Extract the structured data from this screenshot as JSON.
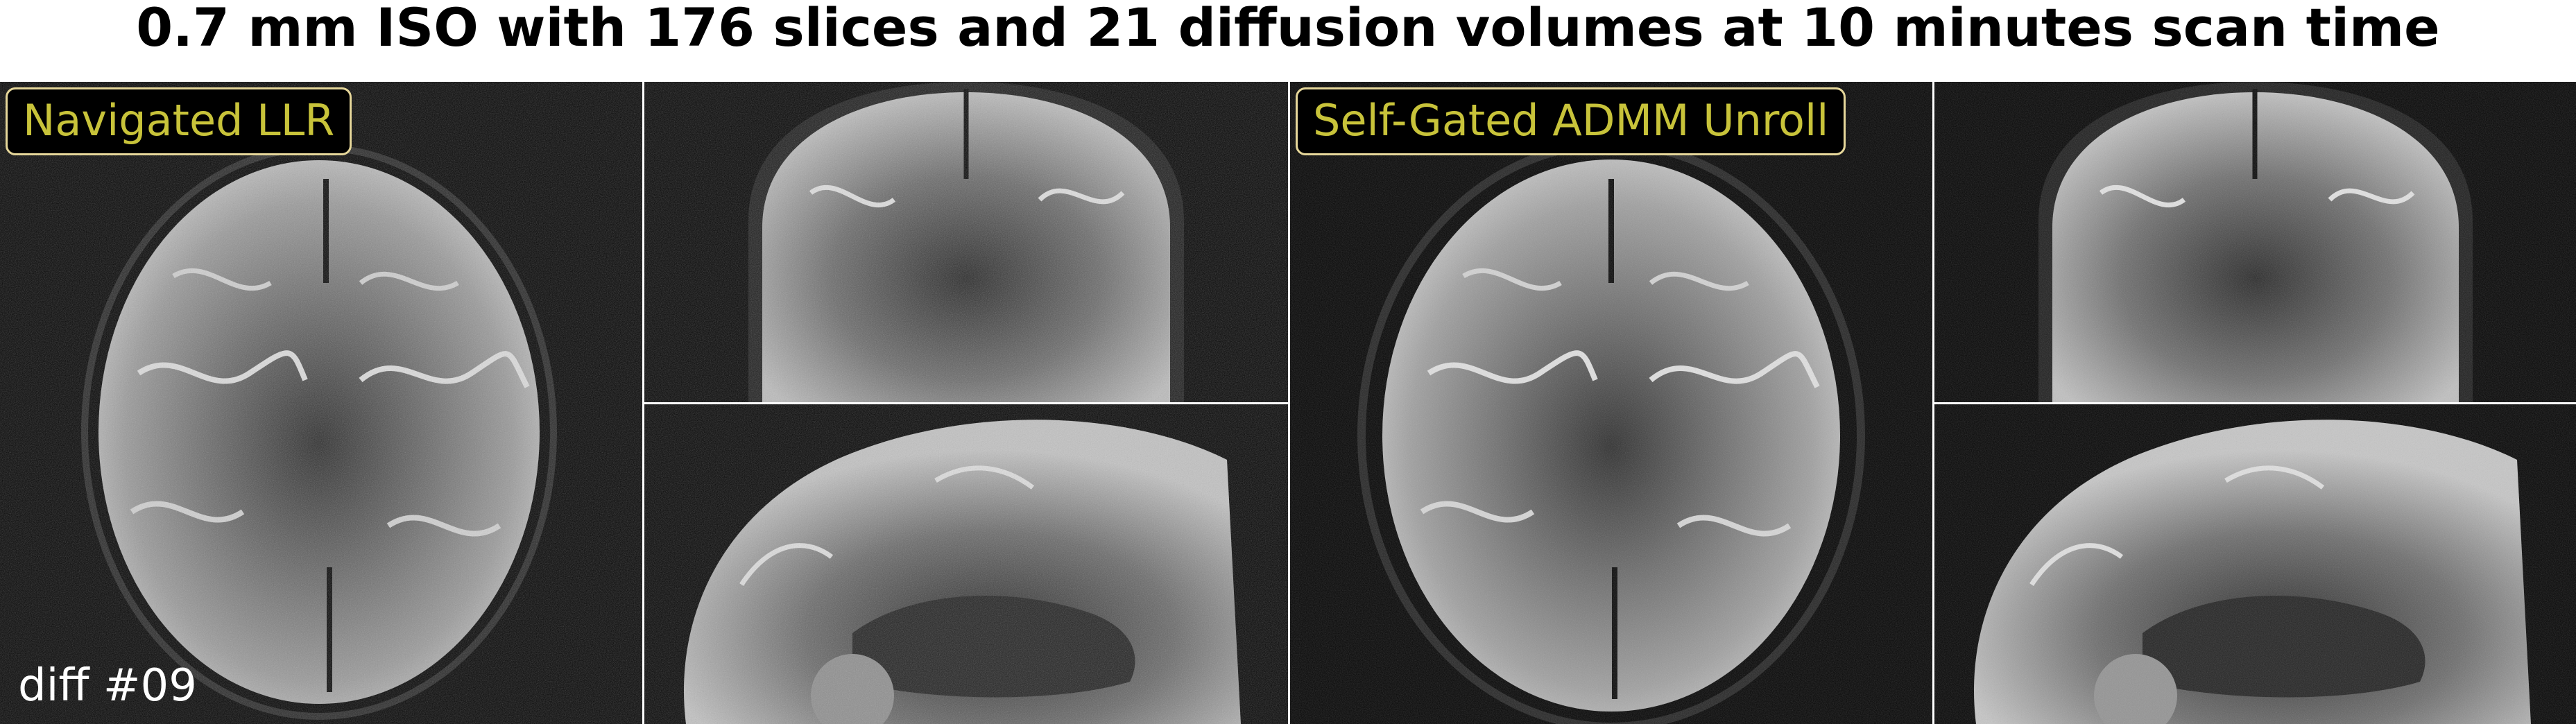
{
  "title": "0.7 mm ISO with 176 slices and 21 diffusion volumes at 10 minutes scan time",
  "labels": {
    "left_method": "Navigated LLR",
    "right_method": "Self-Gated ADMM Unroll",
    "diffusion_index": "diff #09"
  },
  "panels": {
    "left_axial": "axial-view",
    "left_coronal": "coronal-view",
    "left_sagittal": "sagittal-view",
    "right_axial": "axial-view",
    "right_coronal": "coronal-view",
    "right_sagittal": "sagittal-view"
  },
  "colors": {
    "background": "#000000",
    "label_text": "#c8c33a",
    "label_border": "#e6d79a",
    "tissue_light": "#bdbdbd",
    "tissue_mid": "#6f6f6f",
    "tissue_dark": "#2a2a2a"
  }
}
